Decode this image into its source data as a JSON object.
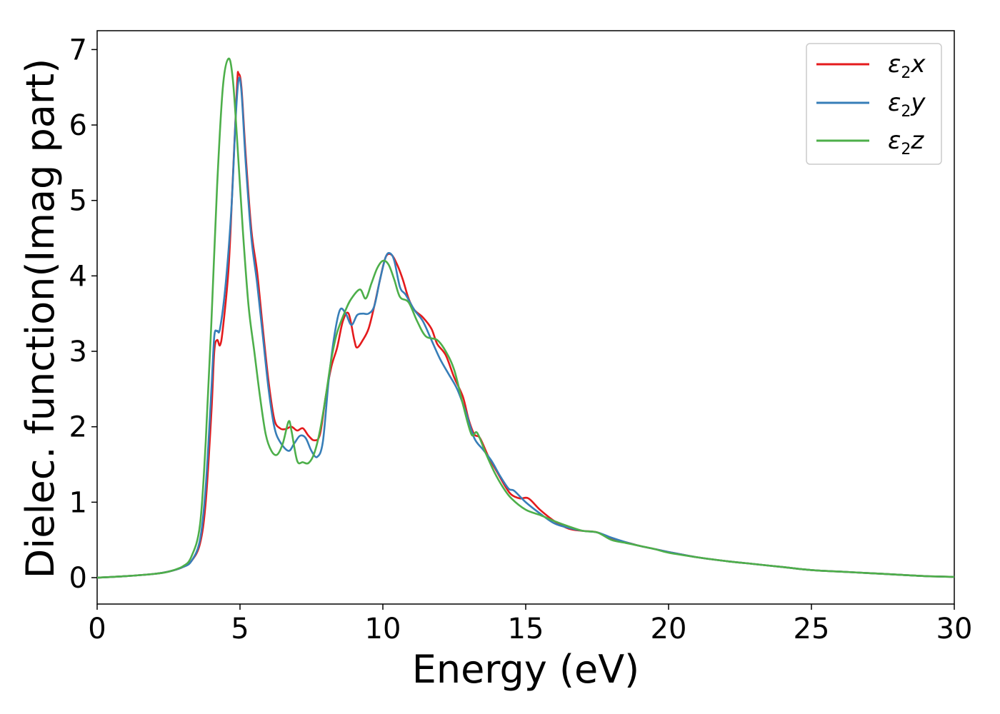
{
  "chart_data": {
    "type": "line",
    "title": "",
    "xlabel": "Energy (eV)",
    "ylabel": "Dielec. function(Imag part)",
    "xlim": [
      0,
      30
    ],
    "ylim": [
      -0.35,
      7.25
    ],
    "xticks": [
      0,
      5,
      10,
      15,
      20,
      25,
      30
    ],
    "yticks": [
      0,
      1,
      2,
      3,
      4,
      5,
      6,
      7
    ],
    "grid": false,
    "legend_position": "top-right",
    "series": [
      {
        "name": "ε₂x",
        "legend_base": "ε",
        "legend_sub": "2",
        "legend_suffix": "x",
        "color": "#e41a1c",
        "points": [
          [
            0,
            0
          ],
          [
            1,
            0.02
          ],
          [
            2,
            0.05
          ],
          [
            2.5,
            0.08
          ],
          [
            3,
            0.14
          ],
          [
            3.3,
            0.22
          ],
          [
            3.6,
            0.45
          ],
          [
            3.8,
            1.0
          ],
          [
            4.0,
            2.2
          ],
          [
            4.1,
            3.0
          ],
          [
            4.2,
            3.15
          ],
          [
            4.3,
            3.08
          ],
          [
            4.4,
            3.3
          ],
          [
            4.6,
            4.1
          ],
          [
            4.75,
            5.3
          ],
          [
            4.9,
            6.55
          ],
          [
            4.95,
            6.68
          ],
          [
            5.05,
            6.5
          ],
          [
            5.2,
            5.6
          ],
          [
            5.4,
            4.6
          ],
          [
            5.6,
            4.05
          ],
          [
            5.8,
            3.3
          ],
          [
            6.0,
            2.6
          ],
          [
            6.2,
            2.1
          ],
          [
            6.4,
            1.98
          ],
          [
            6.6,
            1.97
          ],
          [
            6.8,
            2.0
          ],
          [
            7.0,
            1.95
          ],
          [
            7.2,
            1.98
          ],
          [
            7.4,
            1.88
          ],
          [
            7.6,
            1.82
          ],
          [
            7.8,
            1.9
          ],
          [
            8.0,
            2.4
          ],
          [
            8.2,
            2.8
          ],
          [
            8.4,
            3.05
          ],
          [
            8.6,
            3.4
          ],
          [
            8.8,
            3.5
          ],
          [
            9.0,
            3.15
          ],
          [
            9.1,
            3.05
          ],
          [
            9.3,
            3.15
          ],
          [
            9.5,
            3.3
          ],
          [
            9.7,
            3.6
          ],
          [
            9.9,
            3.95
          ],
          [
            10.1,
            4.25
          ],
          [
            10.3,
            4.28
          ],
          [
            10.5,
            4.15
          ],
          [
            10.7,
            3.95
          ],
          [
            10.9,
            3.7
          ],
          [
            11.1,
            3.55
          ],
          [
            11.4,
            3.45
          ],
          [
            11.7,
            3.3
          ],
          [
            11.9,
            3.1
          ],
          [
            12.2,
            2.95
          ],
          [
            12.5,
            2.65
          ],
          [
            12.8,
            2.4
          ],
          [
            13.0,
            2.1
          ],
          [
            13.2,
            1.9
          ],
          [
            13.4,
            1.85
          ],
          [
            13.7,
            1.6
          ],
          [
            14.0,
            1.4
          ],
          [
            14.3,
            1.2
          ],
          [
            14.5,
            1.1
          ],
          [
            14.8,
            1.05
          ],
          [
            15.1,
            1.05
          ],
          [
            15.5,
            0.9
          ],
          [
            16.0,
            0.75
          ],
          [
            16.5,
            0.65
          ],
          [
            17.0,
            0.62
          ],
          [
            17.5,
            0.6
          ],
          [
            18.0,
            0.52
          ],
          [
            18.5,
            0.47
          ],
          [
            19.0,
            0.42
          ],
          [
            19.5,
            0.38
          ],
          [
            20.0,
            0.34
          ],
          [
            21.0,
            0.27
          ],
          [
            22.0,
            0.22
          ],
          [
            23.0,
            0.18
          ],
          [
            24.0,
            0.14
          ],
          [
            25.0,
            0.1
          ],
          [
            26.0,
            0.08
          ],
          [
            27.0,
            0.06
          ],
          [
            28.0,
            0.04
          ],
          [
            29.0,
            0.02
          ],
          [
            30.0,
            0.01
          ]
        ]
      },
      {
        "name": "ε₂y",
        "legend_base": "ε",
        "legend_sub": "2",
        "legend_suffix": "y",
        "color": "#377eb8",
        "points": [
          [
            0,
            0
          ],
          [
            1,
            0.02
          ],
          [
            2,
            0.05
          ],
          [
            2.5,
            0.08
          ],
          [
            3,
            0.14
          ],
          [
            3.3,
            0.22
          ],
          [
            3.6,
            0.5
          ],
          [
            3.8,
            1.2
          ],
          [
            4.0,
            2.5
          ],
          [
            4.1,
            3.2
          ],
          [
            4.2,
            3.27
          ],
          [
            4.3,
            3.3
          ],
          [
            4.5,
            3.9
          ],
          [
            4.7,
            4.9
          ],
          [
            4.85,
            6.1
          ],
          [
            4.95,
            6.6
          ],
          [
            5.05,
            6.45
          ],
          [
            5.2,
            5.5
          ],
          [
            5.4,
            4.5
          ],
          [
            5.6,
            3.9
          ],
          [
            5.8,
            3.2
          ],
          [
            6.0,
            2.5
          ],
          [
            6.2,
            2.0
          ],
          [
            6.4,
            1.8
          ],
          [
            6.7,
            1.68
          ],
          [
            6.9,
            1.78
          ],
          [
            7.1,
            1.88
          ],
          [
            7.3,
            1.85
          ],
          [
            7.5,
            1.68
          ],
          [
            7.7,
            1.6
          ],
          [
            7.9,
            1.8
          ],
          [
            8.1,
            2.6
          ],
          [
            8.3,
            3.2
          ],
          [
            8.5,
            3.55
          ],
          [
            8.7,
            3.5
          ],
          [
            8.9,
            3.35
          ],
          [
            9.1,
            3.48
          ],
          [
            9.3,
            3.5
          ],
          [
            9.5,
            3.5
          ],
          [
            9.7,
            3.6
          ],
          [
            9.9,
            3.95
          ],
          [
            10.1,
            4.25
          ],
          [
            10.25,
            4.3
          ],
          [
            10.4,
            4.2
          ],
          [
            10.6,
            3.85
          ],
          [
            10.8,
            3.75
          ],
          [
            11.1,
            3.55
          ],
          [
            11.4,
            3.4
          ],
          [
            11.7,
            3.15
          ],
          [
            12.0,
            2.9
          ],
          [
            12.3,
            2.7
          ],
          [
            12.6,
            2.5
          ],
          [
            12.9,
            2.2
          ],
          [
            13.2,
            1.85
          ],
          [
            13.5,
            1.7
          ],
          [
            13.8,
            1.55
          ],
          [
            14.1,
            1.35
          ],
          [
            14.4,
            1.18
          ],
          [
            14.6,
            1.15
          ],
          [
            15.0,
            1.0
          ],
          [
            15.5,
            0.85
          ],
          [
            16.0,
            0.72
          ],
          [
            16.5,
            0.66
          ],
          [
            17.0,
            0.62
          ],
          [
            17.5,
            0.6
          ],
          [
            18.0,
            0.53
          ],
          [
            18.5,
            0.47
          ],
          [
            19.0,
            0.42
          ],
          [
            19.5,
            0.38
          ],
          [
            20.0,
            0.34
          ],
          [
            21.0,
            0.27
          ],
          [
            22.0,
            0.22
          ],
          [
            23.0,
            0.18
          ],
          [
            24.0,
            0.14
          ],
          [
            25.0,
            0.1
          ],
          [
            26.0,
            0.08
          ],
          [
            27.0,
            0.06
          ],
          [
            28.0,
            0.04
          ],
          [
            29.0,
            0.02
          ],
          [
            30.0,
            0.01
          ]
        ]
      },
      {
        "name": "ε₂z",
        "legend_base": "ε",
        "legend_sub": "2",
        "legend_suffix": "z",
        "color": "#4daf4a",
        "points": [
          [
            0,
            0
          ],
          [
            1,
            0.02
          ],
          [
            2,
            0.05
          ],
          [
            2.5,
            0.08
          ],
          [
            3,
            0.15
          ],
          [
            3.3,
            0.28
          ],
          [
            3.6,
            0.7
          ],
          [
            3.8,
            1.8
          ],
          [
            4.0,
            3.4
          ],
          [
            4.2,
            5.2
          ],
          [
            4.4,
            6.5
          ],
          [
            4.6,
            6.88
          ],
          [
            4.75,
            6.6
          ],
          [
            4.9,
            5.8
          ],
          [
            5.1,
            4.6
          ],
          [
            5.3,
            3.6
          ],
          [
            5.5,
            3.0
          ],
          [
            5.7,
            2.4
          ],
          [
            5.9,
            1.9
          ],
          [
            6.1,
            1.68
          ],
          [
            6.3,
            1.63
          ],
          [
            6.5,
            1.78
          ],
          [
            6.7,
            2.07
          ],
          [
            6.8,
            1.95
          ],
          [
            7.0,
            1.55
          ],
          [
            7.2,
            1.53
          ],
          [
            7.4,
            1.52
          ],
          [
            7.6,
            1.65
          ],
          [
            7.8,
            1.95
          ],
          [
            8.0,
            2.4
          ],
          [
            8.2,
            2.9
          ],
          [
            8.4,
            3.25
          ],
          [
            8.7,
            3.55
          ],
          [
            8.9,
            3.7
          ],
          [
            9.2,
            3.82
          ],
          [
            9.4,
            3.7
          ],
          [
            9.6,
            3.9
          ],
          [
            9.8,
            4.1
          ],
          [
            10.0,
            4.2
          ],
          [
            10.2,
            4.15
          ],
          [
            10.4,
            3.95
          ],
          [
            10.6,
            3.72
          ],
          [
            10.9,
            3.65
          ],
          [
            11.2,
            3.4
          ],
          [
            11.5,
            3.2
          ],
          [
            11.9,
            3.15
          ],
          [
            12.2,
            3.0
          ],
          [
            12.5,
            2.75
          ],
          [
            12.8,
            2.3
          ],
          [
            13.1,
            1.9
          ],
          [
            13.3,
            1.92
          ],
          [
            13.6,
            1.65
          ],
          [
            13.9,
            1.4
          ],
          [
            14.2,
            1.2
          ],
          [
            14.5,
            1.05
          ],
          [
            15.0,
            0.9
          ],
          [
            15.5,
            0.83
          ],
          [
            16.0,
            0.75
          ],
          [
            16.5,
            0.68
          ],
          [
            17.0,
            0.62
          ],
          [
            17.5,
            0.6
          ],
          [
            18.0,
            0.5
          ],
          [
            18.5,
            0.46
          ],
          [
            19.0,
            0.42
          ],
          [
            19.5,
            0.38
          ],
          [
            20.0,
            0.33
          ],
          [
            21.0,
            0.27
          ],
          [
            22.0,
            0.22
          ],
          [
            23.0,
            0.18
          ],
          [
            24.0,
            0.14
          ],
          [
            25.0,
            0.1
          ],
          [
            26.0,
            0.08
          ],
          [
            27.0,
            0.06
          ],
          [
            28.0,
            0.04
          ],
          [
            29.0,
            0.02
          ],
          [
            30.0,
            0.01
          ]
        ]
      }
    ]
  }
}
